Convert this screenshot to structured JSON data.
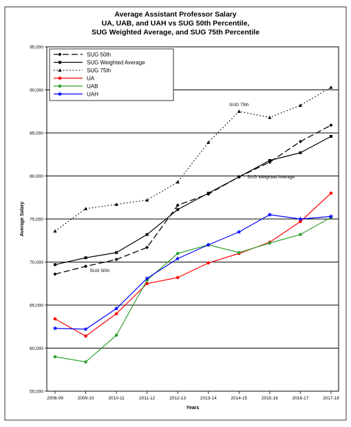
{
  "chart_data": {
    "type": "line",
    "title": "Average Assistant Professor Salary",
    "subtitle_lines": [
      "UA, UAB, and UAH vs SUG 50th Percentile,",
      "SUG Weighted Average, and SUG 75th Percentile"
    ],
    "xlabel": "Years",
    "ylabel": "Average Salary",
    "categories": [
      "2008-09",
      "2009-10",
      "2010-11",
      "2011-12",
      "2012-13",
      "2013-14",
      "2014-15",
      "2015-16",
      "2016-17",
      "2017-18"
    ],
    "ylim": [
      55000,
      95000
    ],
    "yticks": [
      55000,
      60000,
      65000,
      70000,
      75000,
      80000,
      85000,
      90000,
      95000
    ],
    "ytick_labels": [
      "55,000",
      "60,000",
      "65,000",
      "70,000",
      "75,000",
      "80,000",
      "85,000",
      "90,000",
      "95,000"
    ],
    "grid": "horizontal",
    "legend_position": "top-left",
    "series": [
      {
        "name": "SUG 50th",
        "color": "#000000",
        "dash": "long-dash",
        "marker": "diamond",
        "values": [
          68600,
          69500,
          70300,
          71700,
          76600,
          77900,
          79900,
          81600,
          84000,
          85900
        ]
      },
      {
        "name": "SUG Weighted Average",
        "color": "#000000",
        "dash": "solid",
        "marker": "square",
        "values": [
          69700,
          70500,
          71100,
          73200,
          76100,
          78000,
          79900,
          81800,
          82700,
          84600
        ]
      },
      {
        "name": "SUG 75th",
        "color": "#000000",
        "dash": "dotted",
        "marker": "triangle",
        "values": [
          73600,
          76200,
          76700,
          77200,
          79300,
          83900,
          87500,
          86800,
          88200,
          90300
        ]
      },
      {
        "name": "UA",
        "color": "#ff0000",
        "dash": "solid",
        "marker": "circle",
        "values": [
          63400,
          61400,
          64000,
          67500,
          68200,
          69900,
          71000,
          72300,
          74700,
          78000
        ]
      },
      {
        "name": "UAB",
        "color": "#2ca02c",
        "dash": "solid",
        "marker": "circle",
        "values": [
          59000,
          58400,
          61500,
          67900,
          71000,
          72000,
          71100,
          72200,
          73200,
          75200
        ]
      },
      {
        "name": "UAH",
        "color": "#0000ff",
        "dash": "solid",
        "marker": "star",
        "values": [
          62300,
          62200,
          64600,
          68100,
          70400,
          72000,
          73500,
          75500,
          75000,
          75300
        ]
      }
    ],
    "annotations": [
      {
        "text": "SUG 75th",
        "series": "SUG 75th",
        "x_index": 6
      },
      {
        "text": "SUG Weighted Average",
        "series": "SUG Weighted Average",
        "x_index": 6
      },
      {
        "text": "SUG 50th",
        "series": "SUG 50th",
        "x_index": 1
      }
    ]
  }
}
